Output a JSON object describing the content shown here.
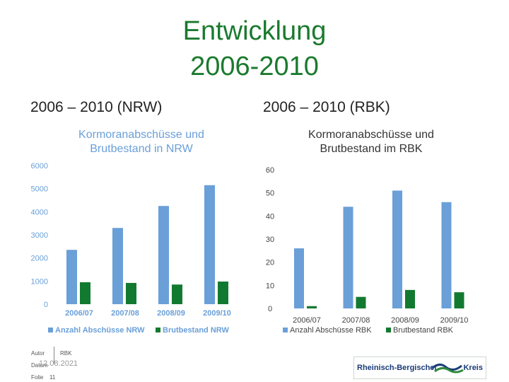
{
  "header": {
    "title_line1": "Entwicklung",
    "title_line2": "2006-2010",
    "left_subtitle": "2006 – 2010 (NRW)",
    "right_subtitle": "2006 – 2010 (RBK)"
  },
  "footer": {
    "author_label": "Autor",
    "author_value": "RBK",
    "date_label": "Datum",
    "date_value": "12.08.2021",
    "slide_label": "Folie",
    "slide_value": "11",
    "logo_text": "Rheinisch-Bergischer",
    "logo_text2": "Kreis"
  },
  "colors": {
    "title_green": "#1a7a2e",
    "series_blue": "#6a9fd8",
    "series_green": "#127a30"
  },
  "chart_data": [
    {
      "type": "bar",
      "title": "Kormoranabschüsse und Brutbestand in NRW",
      "categories": [
        "2006/07",
        "2007/08",
        "2008/09",
        "2009/10"
      ],
      "series": [
        {
          "name": "Anzahl Abschüsse NRW",
          "values": [
            2350,
            3300,
            4250,
            5150
          ]
        },
        {
          "name": "Brutbestand NRW",
          "values": [
            950,
            920,
            850,
            980
          ]
        }
      ],
      "ylim": [
        0,
        6000
      ],
      "yticks": [
        "0",
        "1000",
        "2000",
        "3000",
        "4000",
        "5000",
        "6000"
      ],
      "grid": false,
      "legend": "bottom"
    },
    {
      "type": "bar",
      "title": "Kormoranabschüsse und Brutbestand im RBK",
      "categories": [
        "2006/07",
        "2007/08",
        "2008/09",
        "2009/10"
      ],
      "series": [
        {
          "name": "Anzahl Abschüsse RBK",
          "values": [
            26,
            44,
            51,
            46
          ]
        },
        {
          "name": "Brutbestand RBK",
          "values": [
            1,
            5,
            8,
            7
          ]
        }
      ],
      "ylim": [
        0,
        60
      ],
      "yticks": [
        "0",
        "10",
        "20",
        "30",
        "40",
        "50",
        "60"
      ],
      "grid": false,
      "legend": "bottom"
    }
  ]
}
